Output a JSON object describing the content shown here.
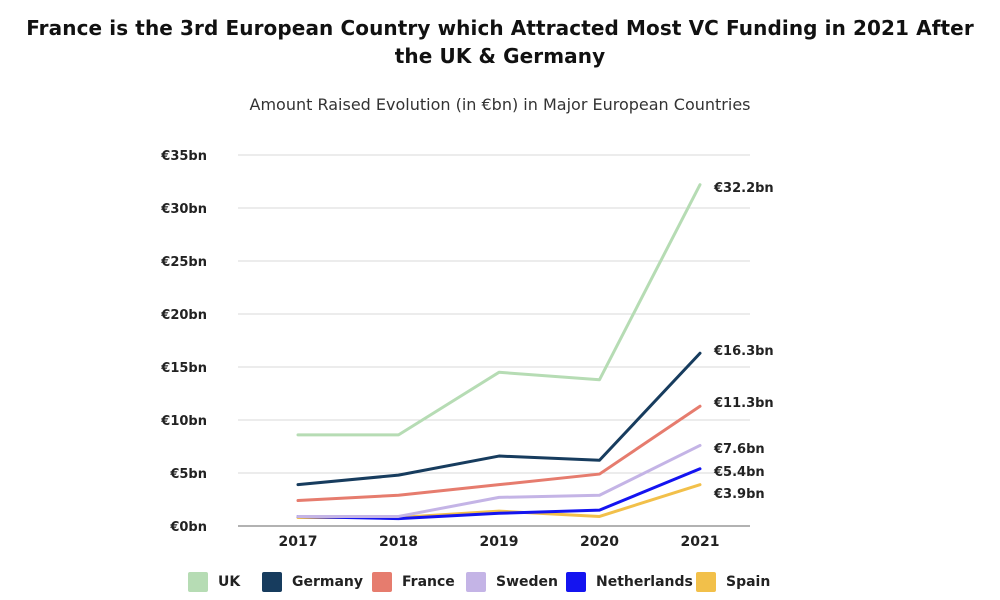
{
  "title": "France is the 3rd European Country which Attracted Most VC Funding in 2021 After the UK & Germany",
  "subtitle": "Amount Raised Evolution (in €bn) in Major European Countries",
  "chart_data": {
    "type": "line",
    "x": [
      "2017",
      "2018",
      "2019",
      "2020",
      "2021"
    ],
    "ylim": [
      0,
      35
    ],
    "yticks": [
      0,
      5,
      10,
      15,
      20,
      25,
      30,
      35
    ],
    "ytick_labels": [
      "€0bn",
      "€5bn",
      "€10bn",
      "€15bn",
      "€20bn",
      "€25bn",
      "€30bn",
      "€35bn"
    ],
    "grid": true,
    "legend_position": "bottom",
    "series": [
      {
        "name": "UK",
        "color": "#b6dcb4",
        "values": [
          8.6,
          8.6,
          14.5,
          13.8,
          32.2
        ],
        "end_label": "€32.2bn"
      },
      {
        "name": "Germany",
        "color": "#173c5e",
        "values": [
          3.9,
          4.8,
          6.6,
          6.2,
          16.3
        ],
        "end_label": "€16.3bn"
      },
      {
        "name": "France",
        "color": "#e67c6e",
        "values": [
          2.4,
          2.9,
          3.9,
          4.9,
          11.3
        ],
        "end_label": "€11.3bn"
      },
      {
        "name": "Sweden",
        "color": "#c4b4e6",
        "values": [
          0.9,
          0.9,
          2.7,
          2.9,
          7.6
        ],
        "end_label": "€7.6bn"
      },
      {
        "name": "Netherlands",
        "color": "#1414f0",
        "values": [
          0.9,
          0.7,
          1.2,
          1.5,
          5.4
        ],
        "end_label": "€5.4bn"
      },
      {
        "name": "Spain",
        "color": "#f2c04a",
        "values": [
          0.8,
          0.8,
          1.4,
          0.9,
          3.9
        ],
        "end_label": "€3.9bn"
      }
    ]
  }
}
